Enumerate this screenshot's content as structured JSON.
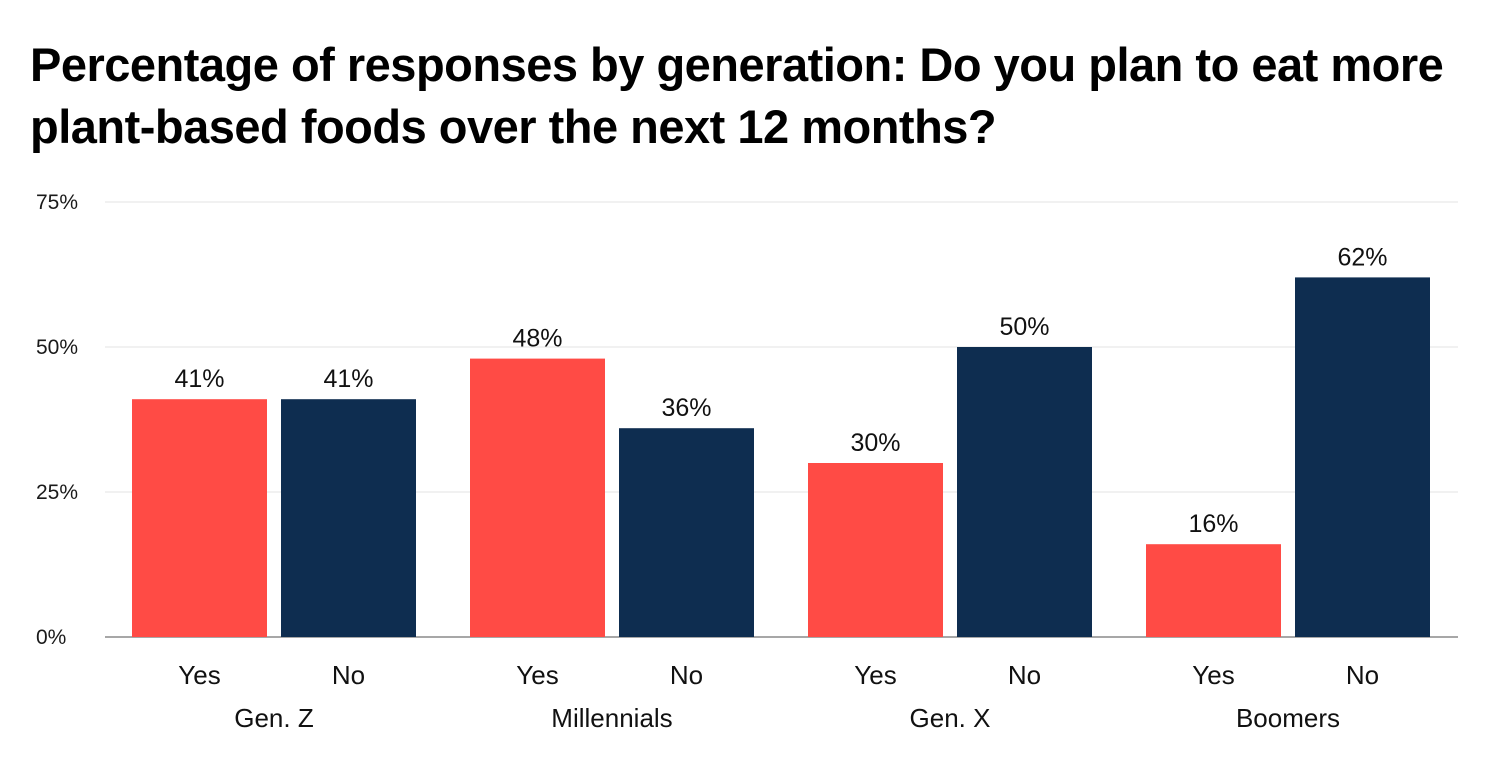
{
  "chart_data": {
    "type": "bar",
    "title": "Percentage of responses by generation: Do you plan to eat more plant-based foods over the next 12 months?",
    "groups": [
      "Gen. Z",
      "Millennials",
      "Gen. X",
      "Boomers"
    ],
    "series": [
      {
        "name": "Yes",
        "color": "#ff4b45",
        "values": [
          41,
          48,
          30,
          16
        ]
      },
      {
        "name": "No",
        "color": "#0e2d50",
        "values": [
          41,
          36,
          50,
          62
        ]
      }
    ],
    "data_labels": {
      "Yes": [
        "41%",
        "48%",
        "30%",
        "16%"
      ],
      "No": [
        "41%",
        "36%",
        "50%",
        "62%"
      ]
    },
    "ylim": [
      0,
      75
    ],
    "yticks": [
      {
        "value": 0,
        "label": "0%"
      },
      {
        "value": 25,
        "label": "25%"
      },
      {
        "value": 50,
        "label": "50%"
      },
      {
        "value": 75,
        "label": "75%"
      }
    ],
    "grid": true,
    "legend": "none"
  }
}
